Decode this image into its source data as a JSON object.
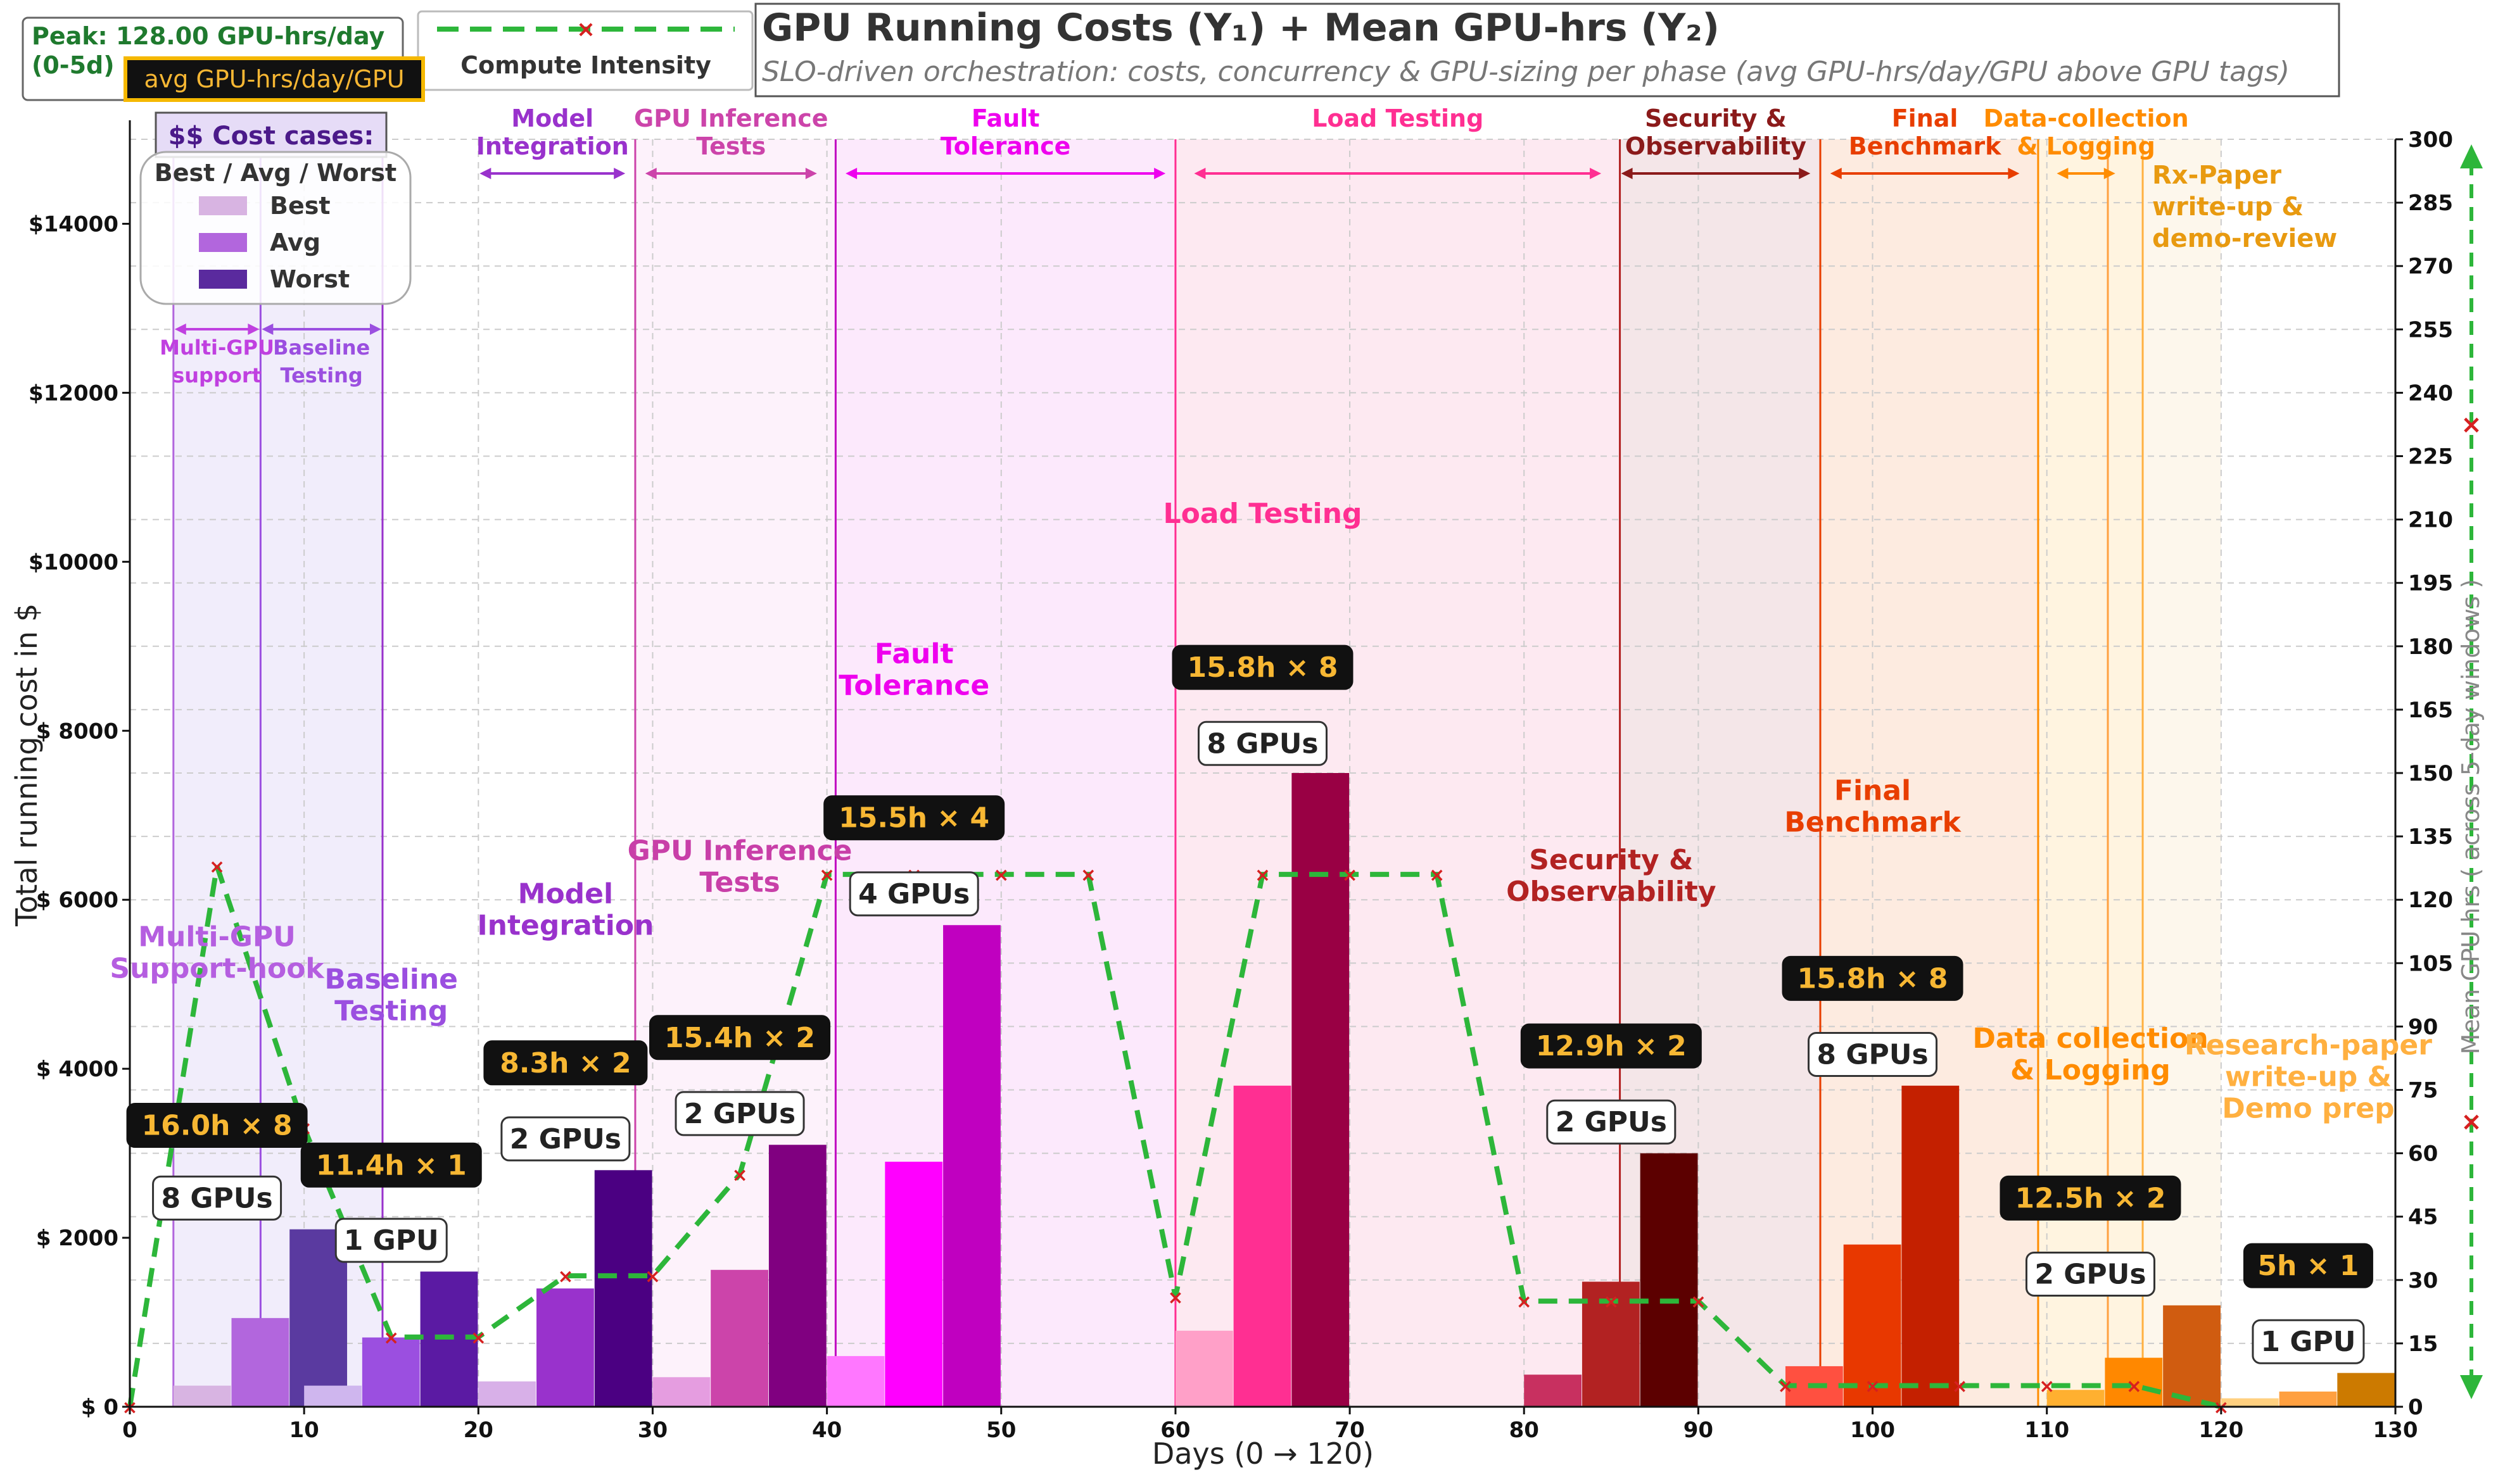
{
  "chart_data": {
    "type": "bar",
    "title": "GPU Running Costs (Y₁) + Mean GPU-hrs (Y₂)",
    "subtitle": "SLO-driven orchestration: costs, concurrency & GPU-sizing per phase (avg GPU-hrs/day/GPU above GPU tags)",
    "xlabel": "Days (0 → 120)",
    "ylabel": "Total running cost in $",
    "y2label": "Mean GPU hrs ( across 5-day windows )",
    "xlim": [
      0,
      130
    ],
    "ylim": [
      0,
      15000
    ],
    "y2lim": [
      0,
      300
    ],
    "x_ticks": [
      0,
      10,
      20,
      30,
      40,
      50,
      60,
      70,
      80,
      90,
      100,
      110,
      120,
      130
    ],
    "y_ticks": [
      {
        "value": 0,
        "label": "$ 0"
      },
      {
        "value": 2000,
        "label": "$ 2000"
      },
      {
        "value": 4000,
        "label": "$ 4000"
      },
      {
        "value": 6000,
        "label": "$ 6000"
      },
      {
        "value": 8000,
        "label": "$ 8000"
      },
      {
        "value": 10000,
        "label": "$10000"
      },
      {
        "value": 12000,
        "label": "$12000"
      },
      {
        "value": 14000,
        "label": "$14000"
      }
    ],
    "y2_ticks": [
      0,
      15,
      30,
      45,
      60,
      75,
      90,
      105,
      120,
      135,
      150,
      165,
      180,
      195,
      210,
      225,
      240,
      255,
      270,
      285,
      300
    ],
    "grid": true,
    "peak_box": {
      "line1": "Peak: 128.00 GPU-hrs/day",
      "line2": "(0-5d)",
      "badge": "avg GPU-hrs/day/GPU"
    },
    "line_legend": "Compute Intensity",
    "cost_legend": {
      "header": "$$ Cost cases:",
      "title": "Best / Avg / Worst",
      "entries": [
        {
          "name": "Best",
          "color": "#d8b4e2"
        },
        {
          "name": "Avg",
          "color": "#b266dd"
        },
        {
          "name": "Worst",
          "color": "#5a2a9e"
        }
      ]
    },
    "phases": [
      {
        "name": "Multi-GPU Support-hook",
        "start": 2.5,
        "end": 7.5,
        "best": 250,
        "avg": 1050,
        "worst": 2100,
        "colors": [
          "#d8b4e2",
          "#b266dd",
          "#5a3aa0"
        ],
        "line_color": "#b266dd",
        "gpu_tag": "8 GPUs",
        "avg_tag": "16.0h × 8",
        "label_color": "#b55ee0",
        "mid_label": [
          "Multi-GPU",
          "Support-hook"
        ],
        "mid_x": 5,
        "mid_y": 5450,
        "gpu_y": 2470,
        "avg_y": 3330
      },
      {
        "name": "Baseline Testing",
        "start": 10,
        "end": 15,
        "best": 250,
        "avg": 820,
        "worst": 1600,
        "colors": [
          "#cfb6ee",
          "#9b4fe0",
          "#5b1aa3"
        ],
        "line_color": "#9b4fe0",
        "gpu_tag": "1 GPU",
        "avg_tag": "11.4h × 1",
        "label_color": "#9b4fe0",
        "mid_label": [
          "Baseline",
          "Testing"
        ],
        "mid_x": 15,
        "mid_y": 4950,
        "gpu_y": 1970,
        "avg_y": 2860
      },
      {
        "name": "Model Integration",
        "start": 20,
        "end": 25,
        "best": 300,
        "avg": 1400,
        "worst": 2800,
        "colors": [
          "#d8b0e8",
          "#9932cc",
          "#4b0082"
        ],
        "line_color": "#9932cc",
        "gpu_tag": "2 GPUs",
        "avg_tag": "8.3h × 2",
        "label_color": "#9932cc",
        "mid_label": [
          "Model",
          "Integration"
        ],
        "mid_x": 25,
        "mid_y": 5960,
        "gpu_y": 3170,
        "avg_y": 4070
      },
      {
        "name": "GPU Inference Tests",
        "start": 30,
        "end": 35,
        "best": 350,
        "avg": 1620,
        "worst": 3100,
        "colors": [
          "#e59de0",
          "#cc44aa",
          "#800080"
        ],
        "line_color": "#c83fa8",
        "gpu_tag": "2 GPUs",
        "avg_tag": "15.4h × 2",
        "label_color": "#c83fa8",
        "mid_label": [
          "GPU Inference",
          "Tests"
        ],
        "mid_x": 35,
        "mid_y": 6470,
        "gpu_y": 3470,
        "avg_y": 4370
      },
      {
        "name": "Fault Tolerance",
        "start": 40,
        "end": 45,
        "best": 600,
        "avg": 2900,
        "worst": 5700,
        "colors": [
          "#ff77ff",
          "#ff00ff",
          "#c000c0"
        ],
        "line_color": "#c000c0",
        "gpu_tag": "4 GPUs",
        "avg_tag": "15.5h × 4",
        "label_color": "#ee00ee",
        "mid_label": [
          "Fault",
          "Tolerance"
        ],
        "mid_x": 45,
        "mid_y": 8800,
        "gpu_y": 6070,
        "avg_y": 6970
      },
      {
        "name": "Load Testing",
        "start": 60,
        "end": 65,
        "best": 900,
        "avg": 3800,
        "worst": 7500,
        "colors": [
          "#ffa0c8",
          "#ff2f92",
          "#990044"
        ],
        "line_color": "#ff2f92",
        "gpu_tag": "8 GPUs",
        "avg_tag": "15.8h × 8",
        "label_color": "#ff2f92",
        "mid_label": [
          "Load Testing"
        ],
        "mid_x": 65,
        "mid_y": 10460,
        "gpu_y": 7850,
        "avg_y": 8750
      },
      {
        "name": "Security & Observability",
        "start": 80,
        "end": 85,
        "best": 380,
        "avg": 1480,
        "worst": 3000,
        "colors": [
          "#c83060",
          "#b22222",
          "#5c0000"
        ],
        "line_color": "#c82030",
        "gpu_tag": "2 GPUs",
        "avg_tag": "12.9h × 2",
        "label_color": "#b22222",
        "mid_label": [
          "Security &",
          "Observability"
        ],
        "mid_x": 85,
        "mid_y": 6360,
        "gpu_y": 3370,
        "avg_y": 4270
      },
      {
        "name": "Final Benchmark",
        "start": 95,
        "end": 100,
        "best": 480,
        "avg": 1920,
        "worst": 3800,
        "colors": [
          "#ff5040",
          "#e83800",
          "#c42000"
        ],
        "line_color": "#e84010",
        "gpu_tag": "8 GPUs",
        "avg_tag": "15.8h × 8",
        "label_color": "#e83e00",
        "mid_label": [
          "Final",
          "Benchmark"
        ],
        "mid_x": 100,
        "mid_y": 7180,
        "gpu_y": 4170,
        "avg_y": 5070
      },
      {
        "name": "Data collection & Logging",
        "start": 110,
        "end": 115,
        "best": 200,
        "avg": 580,
        "worst": 1200,
        "colors": [
          "#ffb030",
          "#ff8800",
          "#d05c10"
        ],
        "line_color": "#ff9900",
        "gpu_tag": "2 GPUs",
        "avg_tag": "12.5h × 2",
        "label_color": "#ff8c00",
        "mid_label": [
          "Data collection",
          "& Logging"
        ],
        "mid_x": 112.5,
        "mid_y": 4250,
        "gpu_y": 1570,
        "avg_y": 2470
      },
      {
        "name": "Research-paper write-up & Demo prep",
        "start": 120,
        "end": 125,
        "best": 100,
        "avg": 180,
        "worst": 400,
        "colors": [
          "#ffd080",
          "#ffa040",
          "#cc7a00"
        ],
        "line_color": "#ffa040",
        "gpu_tag": "1 GPU",
        "avg_tag": "5h × 1",
        "label_color": "#ffb040",
        "mid_label": [
          "Research-paper",
          "write-up &",
          "Demo prep"
        ],
        "mid_x": 125,
        "mid_y": 4170,
        "gpu_y": 770,
        "avg_y": 1670
      }
    ],
    "compute_intensity": {
      "x": [
        0,
        5,
        10,
        15,
        20,
        25,
        30,
        35,
        40,
        45,
        50,
        55,
        60,
        65,
        70,
        75,
        80,
        85,
        90,
        95,
        100,
        105,
        110,
        115,
        120
      ],
      "y": [
        0,
        128,
        66,
        16.5,
        16.5,
        31,
        31,
        55,
        126,
        126,
        126,
        126,
        26,
        126,
        126,
        126,
        25,
        25,
        25,
        5,
        5,
        5,
        5,
        5,
        0
      ],
      "color": "#2db63a"
    },
    "top_phase_labels": [
      {
        "lines": [
          "Model",
          "Integration"
        ],
        "color": "#9932cc",
        "x": 215,
        "arrow": [
          20,
          28.5
        ]
      },
      {
        "lines": [
          "GPU Inference",
          "Tests"
        ],
        "color": "#cc44aa",
        "x": 345,
        "arrow": [
          29.5,
          39.5
        ]
      },
      {
        "lines": [
          "Fault",
          "Tolerance"
        ],
        "color": "#ee00ee",
        "x": 496,
        "arrow": [
          41,
          59.5
        ]
      },
      {
        "lines": [
          "Load Testing"
        ],
        "color": "#ff2f92",
        "x": 713,
        "arrow": [
          61,
          84.5
        ]
      },
      {
        "lines": [
          "Security &",
          "Observability"
        ],
        "color": "#8b1a1a",
        "x": 910,
        "arrow": [
          85.5,
          96.5
        ]
      },
      {
        "lines": [
          "Final",
          "Benchmark"
        ],
        "color": "#e83e00",
        "x": 1032,
        "arrow": [
          97.5,
          108.5
        ]
      },
      {
        "lines": [
          "Data-collection",
          "& Logging"
        ],
        "color": "#ff8c00",
        "x": 1133,
        "arrow": [
          110.5,
          114
        ]
      },
      {
        "lines": [
          "Multi-GPU",
          "support"
        ],
        "color": "#c040e0",
        "x": 36,
        "arrow": [
          2.5,
          7.5
        ]
      },
      {
        "lines": [
          "Baseline",
          "Testing"
        ],
        "color": "#9b4fe0",
        "x": 123,
        "arrow": [
          7.5,
          14.5
        ]
      }
    ],
    "rx_paper_label": [
      "Rx-Paper",
      "write-up &",
      "demo-review"
    ],
    "phase_dividers": [
      {
        "x": 2.5,
        "color": "#b266dd"
      },
      {
        "x": 7.5,
        "color": "#9b4fe0"
      },
      {
        "x": 14.5,
        "color": "#9932cc"
      },
      {
        "x": 29,
        "color": "#cc44aa"
      },
      {
        "x": 40.5,
        "color": "#c000c0"
      },
      {
        "x": 60,
        "color": "#ff2f92"
      },
      {
        "x": 85.5,
        "color": "#b22222"
      },
      {
        "x": 97,
        "color": "#e83e00"
      },
      {
        "x": 109.5,
        "color": "#ff8c00"
      },
      {
        "x": 113.5,
        "color": "#ffa040"
      },
      {
        "x": 115.5,
        "color": "#ffb040"
      }
    ],
    "phase_shading": [
      {
        "from": 2.5,
        "to": 14.5,
        "color": "#f1edfb"
      },
      {
        "from": 14.5,
        "to": 29,
        "color": "#ffffff"
      },
      {
        "from": 29,
        "to": 40.5,
        "color": "#fdf2fb"
      },
      {
        "from": 40.5,
        "to": 60,
        "color": "#fce9fc"
      },
      {
        "from": 60,
        "to": 85.5,
        "color": "#fde9f1"
      },
      {
        "from": 85.5,
        "to": 97,
        "color": "#f4e6e8"
      },
      {
        "from": 97,
        "to": 109.5,
        "color": "#fdebe0"
      },
      {
        "from": 109.5,
        "to": 115.5,
        "color": "#fff4e0"
      },
      {
        "from": 115.5,
        "to": 120,
        "color": "#fdf7ec"
      }
    ]
  }
}
